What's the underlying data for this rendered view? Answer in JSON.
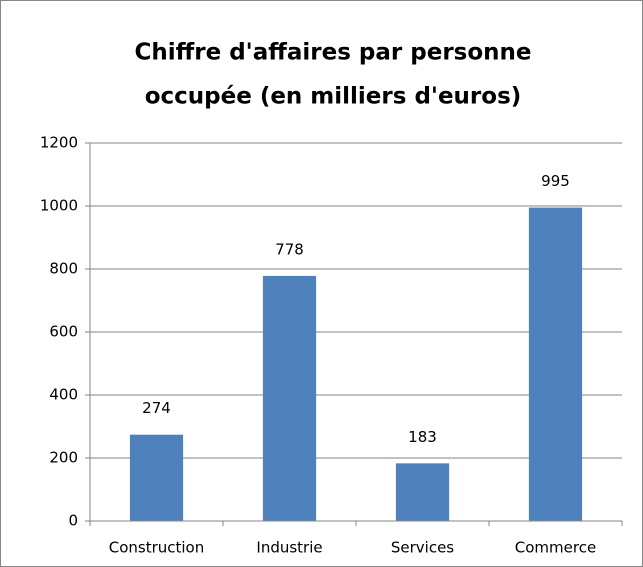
{
  "chart_data": {
    "type": "bar",
    "title": [
      "Chiffre d'affaires par personne",
      "occupée (en milliers d'euros)"
    ],
    "categories": [
      "Construction",
      "Industrie",
      "Services",
      "Commerce"
    ],
    "values": [
      274,
      778,
      183,
      995
    ],
    "color": "#4f81bd",
    "ylim": [
      0,
      1200
    ],
    "yticks": [
      0,
      200,
      400,
      600,
      800,
      1000,
      1200
    ],
    "grid": true
  }
}
